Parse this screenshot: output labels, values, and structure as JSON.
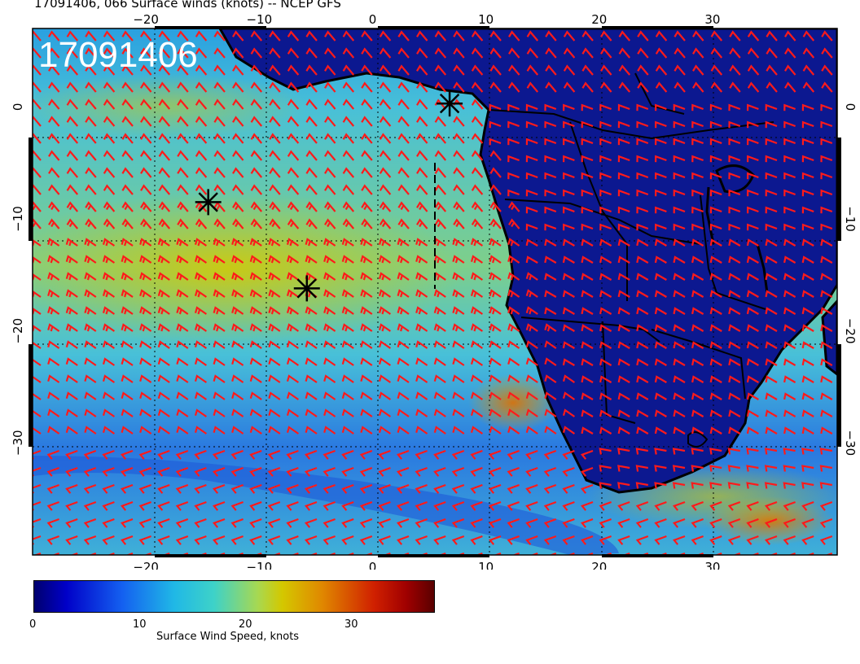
{
  "title": "17091406, 066 Surface winds (knots) -- NCEP GFS",
  "stamp": "17091406",
  "map": {
    "lon_range": [
      -30,
      41
    ],
    "lat_range": [
      -40,
      7
    ],
    "lon_ticks": [
      -20,
      -10,
      0,
      10,
      20,
      30
    ],
    "lat_ticks": [
      0,
      -10,
      -20,
      -30
    ],
    "colors": {
      "sea_dark": "#1428c8",
      "sea_light": "#28a8e0",
      "land": "#0c1890",
      "barb": "#ff1a1a",
      "coast": "#000000"
    },
    "markers": [
      {
        "name": "storm-marker-1",
        "lon": -14.5,
        "lat": -8.5
      },
      {
        "name": "storm-marker-2",
        "lon": -5.8,
        "lat": -16.2
      },
      {
        "name": "storm-marker-3",
        "lon": 6.8,
        "lat": 0.3
      }
    ]
  },
  "colorbar": {
    "label": "Surface Wind Speed, knots",
    "ticks": [
      "0",
      "10",
      "20",
      "30"
    ],
    "range": [
      0,
      38
    ]
  }
}
